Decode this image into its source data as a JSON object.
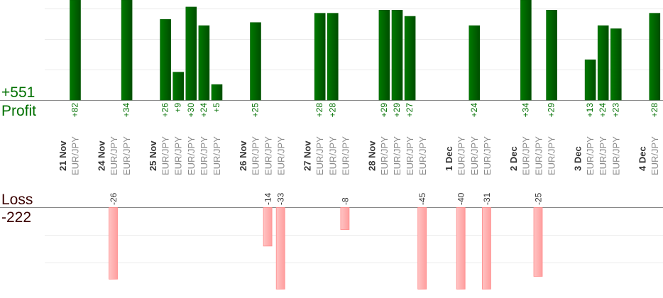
{
  "summary": {
    "profit_total": "+551",
    "profit_label": "Profit",
    "loss_label": "Loss",
    "loss_total": "-222"
  },
  "colors": {
    "profit": "#006400",
    "profit_text": "#007000",
    "loss_fill": "#ffb3b3",
    "loss_stroke": "#ff8c8c",
    "loss_text": "#3a0000",
    "symbol_text": "#8a8a8a",
    "date_text": "#333333"
  },
  "chart_data": {
    "type": "bar",
    "title": "",
    "xlabel": "",
    "ylabel": "",
    "grid": true,
    "columns": [
      {
        "date": "21 Nov",
        "trades": [
          {
            "symbol": "EUR/JPY",
            "value": 82
          }
        ]
      },
      {
        "date": "24 Nov",
        "trades": [
          {
            "symbol": "EUR/JPY",
            "value": -26
          },
          {
            "symbol": "EUR/JPY",
            "value": 34
          }
        ]
      },
      {
        "date": "25 Nov",
        "trades": [
          {
            "symbol": "EUR/JPY",
            "value": 26
          },
          {
            "symbol": "EUR/JPY",
            "value": 9
          },
          {
            "symbol": "EUR/JPY",
            "value": 30
          },
          {
            "symbol": "EUR/JPY",
            "value": 24
          },
          {
            "symbol": "EUR/JPY",
            "value": 5
          }
        ]
      },
      {
        "date": "26 Nov",
        "trades": [
          {
            "symbol": "EUR/JPY",
            "value": 25
          },
          {
            "symbol": "EUR/JPY",
            "value": -14
          },
          {
            "symbol": "EUR/JPY",
            "value": -33
          }
        ]
      },
      {
        "date": "27 Nov",
        "trades": [
          {
            "symbol": "EUR/JPY",
            "value": 28
          },
          {
            "symbol": "EUR/JPY",
            "value": 28
          },
          {
            "symbol": "EUR/JPY",
            "value": -8
          }
        ]
      },
      {
        "date": "28 Nov",
        "trades": [
          {
            "symbol": "EUR/JPY",
            "value": 29
          },
          {
            "symbol": "EUR/JPY",
            "value": 29
          },
          {
            "symbol": "EUR/JPY",
            "value": 27
          },
          {
            "symbol": "EUR/JPY",
            "value": -45
          }
        ]
      },
      {
        "date": "1 Dec",
        "trades": [
          {
            "symbol": "EUR/JPY",
            "value": -40
          },
          {
            "symbol": "EUR/JPY",
            "value": 24
          },
          {
            "symbol": "EUR/JPY",
            "value": -31
          }
        ]
      },
      {
        "date": "2 Dec",
        "trades": [
          {
            "symbol": "EUR/JPY",
            "value": 34
          },
          {
            "symbol": "EUR/JPY",
            "value": -25
          },
          {
            "symbol": "EUR/JPY",
            "value": 29
          }
        ]
      },
      {
        "date": "3 Dec",
        "trades": [
          {
            "symbol": "EUR/JPY",
            "value": 13
          },
          {
            "symbol": "EUR/JPY",
            "value": 24
          },
          {
            "symbol": "EUR/JPY",
            "value": 23
          }
        ]
      },
      {
        "date": "4 Dec",
        "trades": [
          {
            "symbol": "EUR/JPY",
            "value": 28
          }
        ]
      }
    ]
  }
}
